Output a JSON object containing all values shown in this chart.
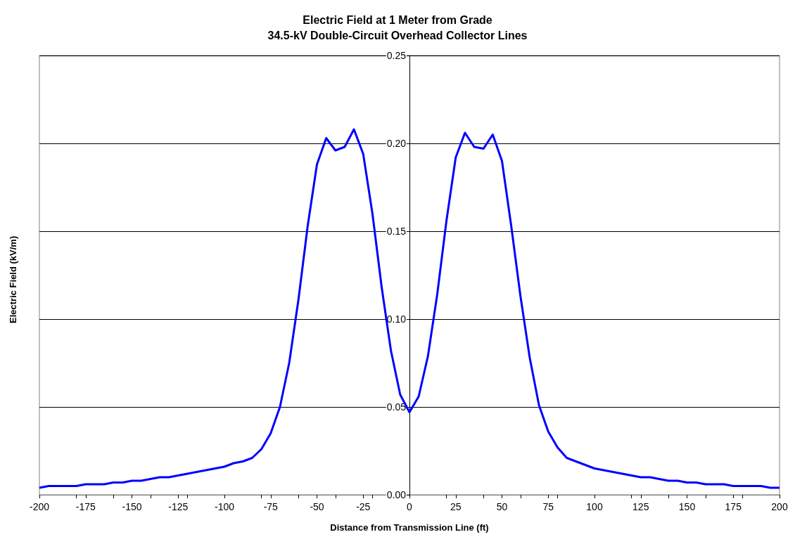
{
  "chart_data": {
    "type": "line",
    "title": "Electric Field at 1 Meter from Grade\n34.5-kV Double-Circuit Overhead Collector Lines",
    "xlabel": "Distance from Transmission Line (ft)",
    "ylabel": "Electric Field (kV/m)",
    "x": [
      -200,
      -195,
      -190,
      -185,
      -180,
      -175,
      -170,
      -165,
      -160,
      -155,
      -150,
      -145,
      -140,
      -135,
      -130,
      -125,
      -120,
      -115,
      -110,
      -105,
      -100,
      -95,
      -90,
      -85,
      -80,
      -75,
      -70,
      -65,
      -60,
      -55,
      -50,
      -45,
      -40,
      -35,
      -30,
      -25,
      -20,
      -15,
      -10,
      -5,
      0,
      5,
      10,
      15,
      20,
      25,
      30,
      35,
      40,
      45,
      50,
      55,
      60,
      65,
      70,
      75,
      80,
      85,
      90,
      95,
      100,
      105,
      110,
      115,
      120,
      125,
      130,
      135,
      140,
      145,
      150,
      155,
      160,
      165,
      170,
      175,
      180,
      185,
      190,
      195,
      200
    ],
    "series": [
      {
        "color": "#0000ff",
        "values": [
          0.004,
          0.005,
          0.005,
          0.005,
          0.005,
          0.006,
          0.006,
          0.006,
          0.007,
          0.007,
          0.008,
          0.008,
          0.009,
          0.01,
          0.01,
          0.011,
          0.012,
          0.013,
          0.014,
          0.015,
          0.016,
          0.018,
          0.019,
          0.021,
          0.026,
          0.035,
          0.05,
          0.075,
          0.111,
          0.153,
          0.188,
          0.203,
          0.196,
          0.198,
          0.208,
          0.194,
          0.16,
          0.118,
          0.082,
          0.057,
          0.047,
          0.056,
          0.079,
          0.114,
          0.156,
          0.192,
          0.206,
          0.198,
          0.197,
          0.205,
          0.19,
          0.153,
          0.113,
          0.078,
          0.051,
          0.036,
          0.027,
          0.021,
          0.019,
          0.017,
          0.015,
          0.014,
          0.013,
          0.012,
          0.011,
          0.01,
          0.01,
          0.009,
          0.008,
          0.008,
          0.007,
          0.007,
          0.006,
          0.006,
          0.006,
          0.005,
          0.005,
          0.005,
          0.005,
          0.004,
          0.004
        ]
      }
    ],
    "xlim": [
      -200,
      200
    ],
    "xticks": [
      -200,
      -175,
      -150,
      -125,
      -100,
      -75,
      -50,
      -25,
      0,
      25,
      50,
      75,
      100,
      125,
      150,
      175,
      200
    ],
    "ylim": [
      0,
      0.25
    ],
    "yticks": [
      {
        "value": 0,
        "label": "0.00"
      },
      {
        "value": 0.05,
        "label": "0.05"
      },
      {
        "value": 0.1,
        "label": "0.10"
      },
      {
        "value": 0.15,
        "label": "0.15"
      },
      {
        "value": 0.2,
        "label": "0.20"
      },
      {
        "value": 0.25,
        "label": "0.25"
      }
    ],
    "grid": "y",
    "marker": "none",
    "line_style": "solid"
  }
}
